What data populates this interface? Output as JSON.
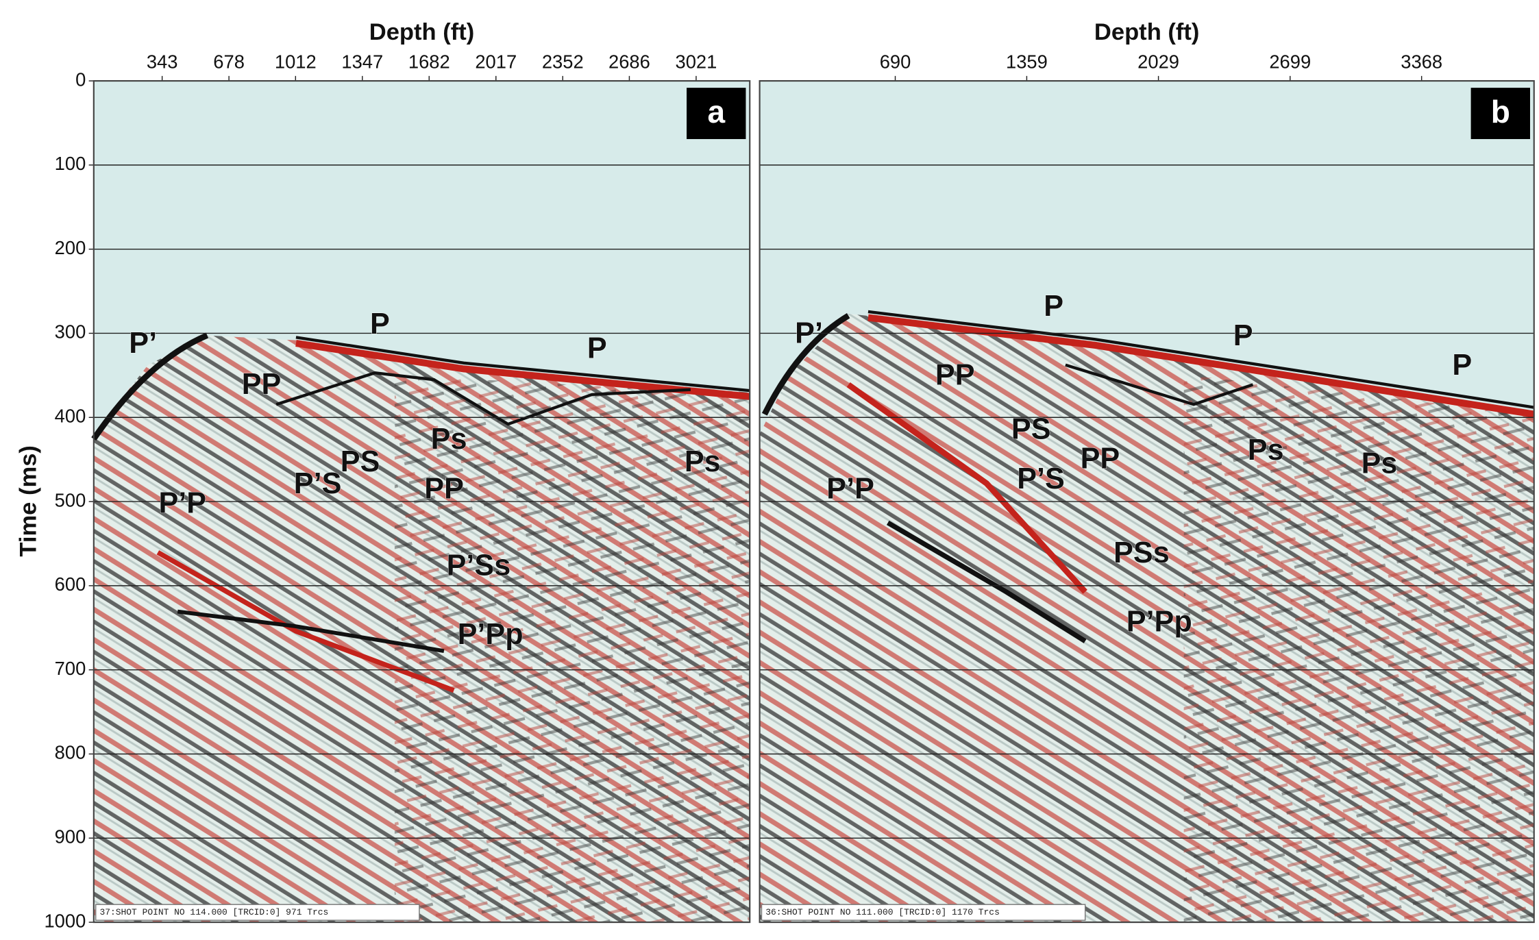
{
  "chart_data": [
    {
      "type": "seismic",
      "panel_label": "a",
      "xlabel": "Depth (ft)",
      "ylabel": "Time (ms)",
      "xlim": [
        0,
        3290
      ],
      "xticks": [
        343,
        678,
        1012,
        1347,
        1682,
        2017,
        2352,
        2686,
        3021
      ],
      "ylim": [
        0,
        1000
      ],
      "yticks": [
        0,
        100,
        200,
        300,
        400,
        500,
        600,
        700,
        800,
        900,
        1000
      ],
      "grid": true,
      "annotations": [
        {
          "text": "P’",
          "x": 247,
          "y": 314
        },
        {
          "text": "P",
          "x": 1435,
          "y": 291
        },
        {
          "text": "P",
          "x": 2524,
          "y": 320
        },
        {
          "text": "PP",
          "x": 841,
          "y": 363
        },
        {
          "text": "PS",
          "x": 1336,
          "y": 455
        },
        {
          "text": "Ps",
          "x": 1781,
          "y": 428
        },
        {
          "text": "Ps",
          "x": 3053,
          "y": 455
        },
        {
          "text": "P’S",
          "x": 1123,
          "y": 481
        },
        {
          "text": "PP",
          "x": 1757,
          "y": 487
        },
        {
          "text": "P’P",
          "x": 445,
          "y": 504
        },
        {
          "text": "P’Ss",
          "x": 1930,
          "y": 578
        },
        {
          "text": "P’Pp",
          "x": 1989,
          "y": 660
        }
      ],
      "footer": "37:SHOT POINT NO 114.000 [TRCID:0] 971 Trcs"
    },
    {
      "type": "seismic",
      "panel_label": "b",
      "xlabel": "Depth (ft)",
      "xlim": [
        0,
        3940
      ],
      "xticks": [
        690,
        1359,
        2029,
        2699,
        3368
      ],
      "annotations": [
        {
          "text": "P’",
          "x": 251,
          "y": 302
        },
        {
          "text": "P",
          "x": 1496,
          "y": 270
        },
        {
          "text": "P",
          "x": 2460,
          "y": 305
        },
        {
          "text": "P",
          "x": 3574,
          "y": 340
        },
        {
          "text": "PP",
          "x": 994,
          "y": 352
        },
        {
          "text": "PS",
          "x": 1381,
          "y": 416
        },
        {
          "text": "PP",
          "x": 1732,
          "y": 451
        },
        {
          "text": "Ps",
          "x": 2575,
          "y": 441
        },
        {
          "text": "Ps",
          "x": 3153,
          "y": 457
        },
        {
          "text": "P’S",
          "x": 1431,
          "y": 475
        },
        {
          "text": "P’P",
          "x": 462,
          "y": 487
        },
        {
          "text": "PSs",
          "x": 1943,
          "y": 563
        },
        {
          "text": "P’Pp",
          "x": 2033,
          "y": 645
        }
      ],
      "footer": "36:SHOT POINT NO 111.000 [TRCID:0] 1170 Trcs"
    }
  ]
}
